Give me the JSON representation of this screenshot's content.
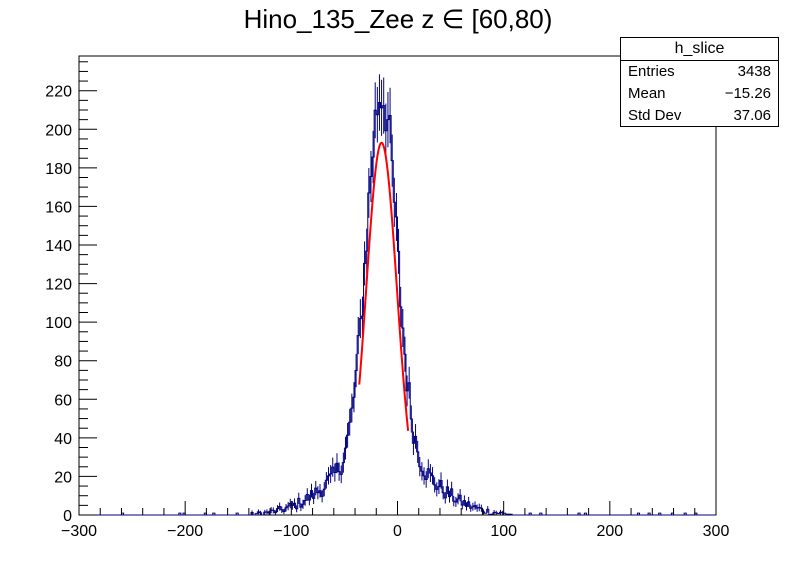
{
  "chart_data": {
    "type": "histogram",
    "title": "Hino_135_Zee z  ∈ [60,80)",
    "xlabel": "",
    "ylabel": "",
    "xlim": [
      -300,
      300
    ],
    "ylim": [
      0,
      238
    ],
    "x_ticks": [
      -300,
      -200,
      -100,
      0,
      100,
      200,
      300
    ],
    "y_ticks": [
      0,
      20,
      40,
      60,
      80,
      100,
      120,
      140,
      160,
      180,
      200,
      220
    ],
    "bin_width": 2,
    "grid": false,
    "series": [
      {
        "color": "#000080",
        "peak_x": -15,
        "peak_y": 227
      },
      {
        "type": "fit",
        "color": "#ff0000",
        "function": "gaus",
        "x_range": [
          -36,
          10
        ],
        "constant": 193,
        "mean": -15,
        "sigma": 14.5
      }
    ],
    "stats_box": {
      "title": "h_slice",
      "entries_label": "Entries",
      "entries": "3438",
      "mean_label": "Mean",
      "mean": "−15.26",
      "stddev_label": "Std Dev",
      "stddev": "37.06"
    }
  }
}
